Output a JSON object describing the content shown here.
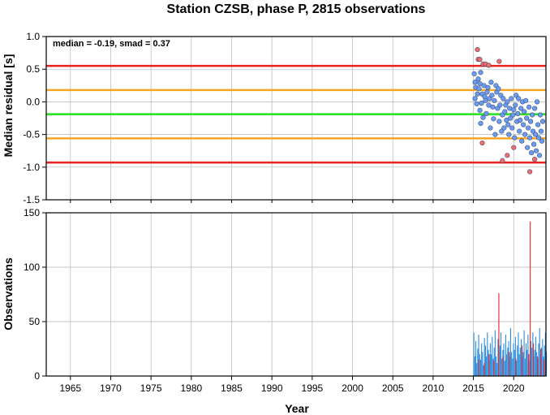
{
  "chart_data": [
    {
      "type": "scatter",
      "title": "Station CZSB, phase P, 2815 observations",
      "ylabel": "Median residual [s]",
      "xlim": [
        1962,
        2024
      ],
      "ylim": [
        -1.5,
        1.0
      ],
      "yticks": [
        "1.0",
        "0.5",
        "0.0",
        "-0.5",
        "-1.0",
        "-1.5"
      ],
      "ytick_values": [
        1.0,
        0.5,
        0.0,
        -0.5,
        -1.0,
        -1.5
      ],
      "annotation": "median = -0.19, smad = 0.37",
      "grid": true,
      "reference_lines": [
        {
          "value": 0.55,
          "color": "#e8221f"
        },
        {
          "value": 0.18,
          "color": "#f5a623"
        },
        {
          "value": -0.19,
          "color": "#22e21a"
        },
        {
          "value": -0.56,
          "color": "#f5a623"
        },
        {
          "value": -0.93,
          "color": "#e8221f"
        }
      ],
      "series": [
        {
          "color": "#6a9cf2",
          "points": [
            [
              2015.1,
              0.43
            ],
            [
              2015.2,
              0.3
            ],
            [
              2015.3,
              0.22
            ],
            [
              2015.2,
              0.05
            ],
            [
              2015.4,
              -0.03
            ],
            [
              2015.5,
              0.12
            ],
            [
              2015.6,
              0.35
            ],
            [
              2015.7,
              0.2
            ],
            [
              2015.8,
              0.28
            ],
            [
              2015.9,
              0.45
            ],
            [
              2015.8,
              -0.13
            ],
            [
              2015.9,
              -0.33
            ],
            [
              2016.0,
              -0.02
            ],
            [
              2016.1,
              0.12
            ],
            [
              2016.2,
              -0.24
            ],
            [
              2016.3,
              0.25
            ],
            [
              2016.4,
              0.08
            ],
            [
              2016.5,
              0.02
            ],
            [
              2016.6,
              -0.18
            ],
            [
              2016.7,
              0.15
            ],
            [
              2016.8,
              0.22
            ],
            [
              2016.9,
              -0.05
            ],
            [
              2017.0,
              0.05
            ],
            [
              2017.1,
              -0.4
            ],
            [
              2017.2,
              0.3
            ],
            [
              2017.3,
              0.1
            ],
            [
              2017.4,
              -0.08
            ],
            [
              2017.5,
              -0.26
            ],
            [
              2017.6,
              0.02
            ],
            [
              2017.7,
              -0.5
            ],
            [
              2017.8,
              0.25
            ],
            [
              2017.9,
              0.15
            ],
            [
              2018.0,
              -0.1
            ],
            [
              2018.1,
              0.2
            ],
            [
              2018.2,
              -0.3
            ],
            [
              2018.3,
              -0.05
            ],
            [
              2018.4,
              0.1
            ],
            [
              2018.5,
              -0.45
            ],
            [
              2018.6,
              -0.2
            ],
            [
              2018.7,
              0.05
            ],
            [
              2018.8,
              -0.4
            ],
            [
              2018.9,
              -0.15
            ],
            [
              2019.0,
              -0.05
            ],
            [
              2019.1,
              -0.28
            ],
            [
              2019.2,
              0.0
            ],
            [
              2019.3,
              -0.35
            ],
            [
              2019.4,
              -0.5
            ],
            [
              2019.5,
              -0.1
            ],
            [
              2019.6,
              -0.25
            ],
            [
              2019.7,
              0.05
            ],
            [
              2019.8,
              -0.4
            ],
            [
              2019.9,
              -0.2
            ],
            [
              2020.0,
              -0.12
            ],
            [
              2020.1,
              -0.55
            ],
            [
              2020.2,
              -0.05
            ],
            [
              2020.3,
              0.1
            ],
            [
              2020.4,
              -0.3
            ],
            [
              2020.5,
              -0.18
            ],
            [
              2020.6,
              0.05
            ],
            [
              2020.7,
              -0.45
            ],
            [
              2020.8,
              -0.28
            ],
            [
              2020.9,
              -0.1
            ],
            [
              2021.0,
              -0.6
            ],
            [
              2021.1,
              0.0
            ],
            [
              2021.2,
              -0.35
            ],
            [
              2021.3,
              -0.15
            ],
            [
              2021.4,
              -0.5
            ],
            [
              2021.5,
              0.02
            ],
            [
              2021.6,
              -0.25
            ],
            [
              2021.7,
              -0.7
            ],
            [
              2021.8,
              -0.4
            ],
            [
              2021.9,
              -0.08
            ],
            [
              2022.0,
              -0.55
            ],
            [
              2022.1,
              -0.3
            ],
            [
              2022.2,
              -0.78
            ],
            [
              2022.3,
              -0.2
            ],
            [
              2022.4,
              -0.45
            ],
            [
              2022.5,
              -0.65
            ],
            [
              2022.6,
              -0.1
            ],
            [
              2022.7,
              -0.5
            ],
            [
              2022.8,
              -0.75
            ],
            [
              2022.9,
              0.0
            ],
            [
              2023.0,
              -0.35
            ],
            [
              2023.1,
              -0.55
            ],
            [
              2023.2,
              -0.82
            ],
            [
              2023.3,
              -0.2
            ],
            [
              2023.4,
              -0.45
            ],
            [
              2023.5,
              -0.6
            ],
            [
              2023.6,
              -0.3
            ]
          ]
        },
        {
          "color": "#f26a6a",
          "points": [
            [
              2015.5,
              0.8
            ],
            [
              2015.6,
              0.65
            ],
            [
              2015.8,
              0.65
            ],
            [
              2016.2,
              0.58
            ],
            [
              2016.5,
              0.58
            ],
            [
              2016.9,
              0.56
            ],
            [
              2018.2,
              0.62
            ],
            [
              2016.1,
              -0.63
            ],
            [
              2018.6,
              -0.9
            ],
            [
              2019.2,
              -0.82
            ],
            [
              2020.0,
              -0.7
            ],
            [
              2022.0,
              -1.07
            ],
            [
              2022.6,
              -0.88
            ]
          ]
        }
      ]
    },
    {
      "type": "bar",
      "ylabel": "Observations",
      "xlabel": "Year",
      "xlim": [
        1962,
        2024
      ],
      "ylim": [
        0,
        150
      ],
      "yticks": [
        "150",
        "100",
        "50",
        "0"
      ],
      "ytick_values": [
        150,
        100,
        50,
        0
      ],
      "xticks": [
        "1965",
        "1970",
        "1975",
        "1980",
        "1985",
        "1990",
        "1995",
        "2000",
        "2005",
        "2010",
        "2015",
        "2020"
      ],
      "xtick_values": [
        1965,
        1970,
        1975,
        1980,
        1985,
        1990,
        1995,
        2000,
        2005,
        2010,
        2015,
        2020
      ],
      "grid": true,
      "series": [
        {
          "color": "#2b8de0",
          "start": 2015.0,
          "step": 0.12,
          "values": [
            40,
            18,
            32,
            12,
            25,
            38,
            20,
            15,
            30,
            22,
            10,
            35,
            28,
            18,
            40,
            24,
            14,
            30,
            20,
            36,
            16,
            26,
            42,
            18,
            12,
            34,
            22,
            28,
            40,
            16,
            24,
            30,
            14,
            38,
            20,
            26,
            32,
            18,
            44,
            22,
            16,
            30,
            24,
            36,
            14,
            28,
            40,
            20,
            26,
            34,
            18,
            22,
            42,
            16,
            30,
            24,
            38,
            20,
            14,
            32,
            26,
            40,
            18,
            24,
            36,
            22,
            16,
            30,
            44,
            20,
            26,
            34,
            18,
            28,
            40,
            22,
            14,
            32,
            24,
            38,
            20,
            30,
            26,
            16,
            42,
            22,
            28,
            34,
            18,
            24,
            40,
            20,
            30,
            26,
            36,
            16,
            22,
            38,
            24,
            28,
            32,
            20,
            26,
            40,
            18,
            30,
            24,
            34,
            22,
            28,
            36,
            20,
            26,
            30,
            24,
            32,
            22,
            28,
            26,
            30,
            24,
            28,
            22,
            26,
            30,
            24,
            28,
            20,
            26,
            30,
            24
          ]
        },
        {
          "color": "#e8221f",
          "bars": [
            [
              2015.6,
              15
            ],
            [
              2016.3,
              12
            ],
            [
              2016.9,
              20
            ],
            [
              2017.5,
              14
            ],
            [
              2018.1,
              76
            ],
            [
              2018.6,
              18
            ],
            [
              2019.4,
              22
            ],
            [
              2020.2,
              16
            ],
            [
              2021.0,
              28
            ],
            [
              2021.8,
              20
            ],
            [
              2022.0,
              142
            ],
            [
              2022.4,
              30
            ],
            [
              2022.9,
              18
            ],
            [
              2023.3,
              25
            ],
            [
              2023.7,
              15
            ]
          ]
        }
      ]
    }
  ]
}
